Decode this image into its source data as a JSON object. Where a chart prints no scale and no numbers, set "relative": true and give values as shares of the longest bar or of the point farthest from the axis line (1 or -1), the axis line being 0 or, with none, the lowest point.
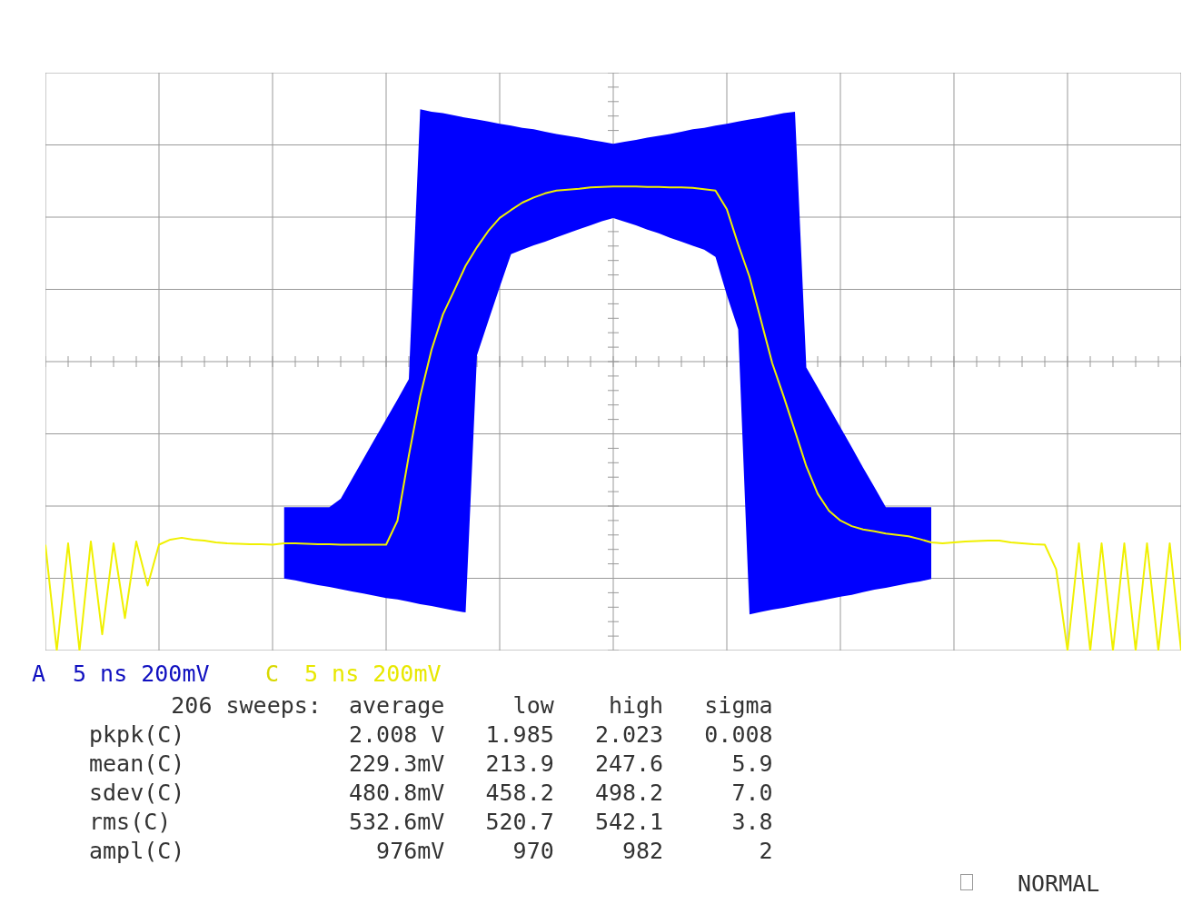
{
  "chart_data": {
    "type": "line",
    "relative": true,
    "grid": true,
    "legend": false,
    "tick_labels": false,
    "categories": [
      null,
      null,
      null,
      null,
      null,
      null,
      null,
      null,
      null,
      null,
      null,
      null,
      null,
      null,
      null,
      null,
      null,
      null,
      null,
      null,
      null,
      null,
      null,
      null,
      null,
      null,
      null,
      null,
      null,
      null,
      null,
      null,
      null,
      null,
      null,
      null,
      null,
      null,
      null,
      null,
      null,
      null,
      null,
      null,
      null,
      null,
      null,
      null,
      null,
      null,
      null,
      null,
      null,
      null,
      null,
      null,
      null,
      null,
      null,
      null,
      null,
      null,
      null,
      null,
      null,
      null,
      null,
      null,
      null,
      null,
      null,
      null,
      null,
      null,
      null,
      null,
      null,
      null,
      null,
      null,
      null,
      null,
      null,
      null,
      null,
      null,
      null,
      null,
      null,
      null,
      null,
      null,
      null,
      null,
      null,
      null,
      null,
      null,
      null,
      null,
      null
    ],
    "series": [
      {
        "color": "#f0f000",
        "values": [
          0.228,
          0,
          0.231,
          0,
          0.235,
          0.035,
          0.231,
          0.07,
          0.235,
          0.14,
          0.228,
          0.239,
          0.243,
          0.239,
          0.237,
          0.233,
          0.231,
          0.23,
          0.229,
          0.229,
          0.228,
          0.231,
          0.231,
          0.23,
          0.229,
          0.229,
          0.228,
          0.228,
          0.228,
          0.228,
          0.228,
          0.28,
          0.42,
          0.548,
          0.648,
          0.724,
          0.776,
          0.829,
          0.869,
          0.904,
          0.932,
          0.949,
          0.965,
          0.976,
          0.985,
          0.991,
          0.993,
          0.995,
          0.998,
          0.999,
          1,
          1,
          1,
          0.999,
          0.999,
          0.998,
          0.998,
          0.997,
          0.994,
          0.991,
          0.951,
          0.875,
          0.805,
          0.712,
          0.619,
          0.548,
          0.473,
          0.397,
          0.338,
          0.301,
          0.28,
          0.268,
          0.261,
          0.257,
          0.252,
          0.249,
          0.246,
          0.24,
          0.233,
          0.231,
          0.233,
          0.235,
          0.236,
          0.237,
          0.237,
          0.233,
          0.231,
          0.229,
          0.228,
          0.175,
          0,
          0.231,
          0,
          0.231,
          0,
          0.231,
          0,
          0.231,
          0,
          0.231,
          0
        ],
        "upper": [
          null,
          null,
          null,
          null,
          null,
          null,
          null,
          null,
          null,
          null,
          null,
          null,
          null,
          null,
          null,
          null,
          null,
          null,
          null,
          null,
          null,
          0.309,
          0.309,
          0.309,
          0.309,
          0.309,
          0.327,
          0.37,
          0.413,
          0.456,
          0.498,
          0.541,
          0.585,
          1.166,
          1.161,
          1.158,
          1.153,
          1.148,
          1.144,
          1.14,
          1.135,
          1.131,
          1.126,
          1.123,
          1.118,
          1.113,
          1.109,
          1.105,
          1.1,
          1.096,
          1.092,
          1.096,
          1.1,
          1.105,
          1.109,
          1.113,
          1.118,
          1.123,
          1.126,
          1.131,
          1.135,
          1.14,
          1.144,
          1.148,
          1.153,
          1.158,
          1.161,
          0.61,
          0.567,
          0.524,
          0.481,
          0.438,
          0.394,
          0.352,
          0.309,
          0.309,
          0.309,
          0.309,
          0.309,
          null,
          null,
          null,
          null,
          null,
          null,
          null,
          null,
          null,
          null,
          null,
          null,
          null,
          null,
          null,
          null,
          null,
          null,
          null,
          null,
          null,
          null
        ],
        "lower": [
          null,
          null,
          null,
          null,
          null,
          null,
          null,
          null,
          null,
          null,
          null,
          null,
          null,
          null,
          null,
          null,
          null,
          null,
          null,
          null,
          null,
          0.155,
          0.151,
          0.146,
          0.141,
          0.137,
          0.132,
          0.127,
          0.123,
          0.118,
          0.113,
          0.11,
          0.105,
          0.1,
          0.096,
          0.091,
          0.086,
          0.082,
          0.636,
          0.71,
          0.783,
          0.854,
          0.864,
          0.873,
          0.881,
          0.89,
          0.899,
          0.908,
          0.916,
          0.925,
          0.932,
          0.924,
          0.916,
          0.907,
          0.899,
          0.889,
          0.881,
          0.872,
          0.864,
          0.848,
          0.766,
          0.692,
          0.078,
          0.083,
          0.088,
          0.092,
          0.097,
          0.102,
          0.106,
          0.111,
          0.116,
          0.12,
          0.126,
          0.131,
          0.135,
          0.14,
          0.145,
          0.149,
          0.154,
          null,
          null,
          null,
          null,
          null,
          null,
          null,
          null,
          null,
          null,
          null,
          null,
          null,
          null,
          null,
          null,
          null,
          null,
          null,
          null,
          null,
          null
        ]
      }
    ],
    "annotations": [
      "A",
      "5 ns 200mV",
      "C",
      "5 ns 200mV",
      "      206 sweeps:  average     low    high   sigma",
      "pkpk(C)            2.008 V   1.985   2.023   0.008",
      "mean(C)            229.3mV   213.9   247.6     5.9",
      "sdev(C)            480.8mV   458.2   498.2     7.0",
      "rms(C)             532.6mV   520.7   542.1     3.8",
      "ampl(C)              976mV     970     982       2",
      "NORMAL"
    ]
  }
}
